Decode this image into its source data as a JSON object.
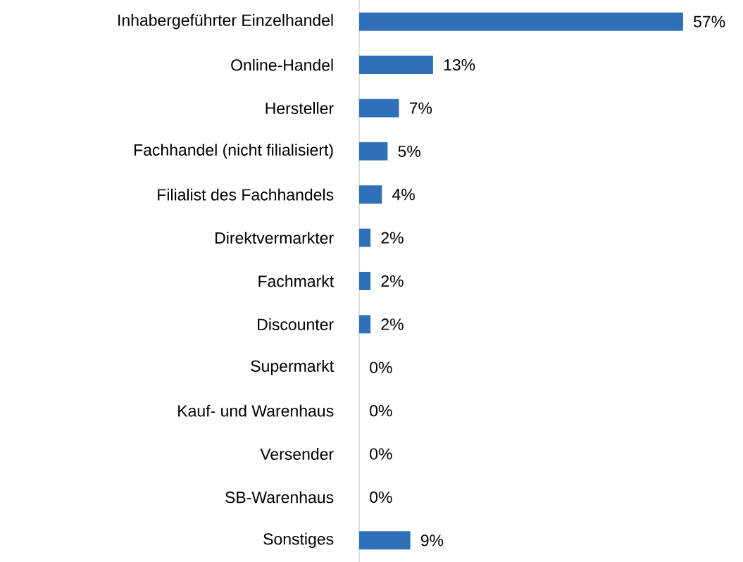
{
  "chart_data": {
    "type": "bar",
    "orientation": "horizontal",
    "categories": [
      "Inhabergeführter Einzelhandel",
      "Online-Handel",
      "Hersteller",
      "Fachhandel (nicht filialisiert)",
      "Filialist des Fachhandels",
      "Direktvermarkter",
      "Fachmarkt",
      "Discounter",
      "Supermarkt",
      "Kauf- und Warenhaus",
      "Versender",
      "SB-Warenhaus",
      "Sonstiges"
    ],
    "values": [
      57,
      13,
      7,
      5,
      4,
      2,
      2,
      2,
      0,
      0,
      0,
      0,
      9
    ],
    "value_labels": [
      "57%",
      "13%",
      "7%",
      "5%",
      "4%",
      "2%",
      "2%",
      "2%",
      "0%",
      "0%",
      "0%",
      "0%",
      "9%"
    ],
    "color": "#3070b8"
  }
}
